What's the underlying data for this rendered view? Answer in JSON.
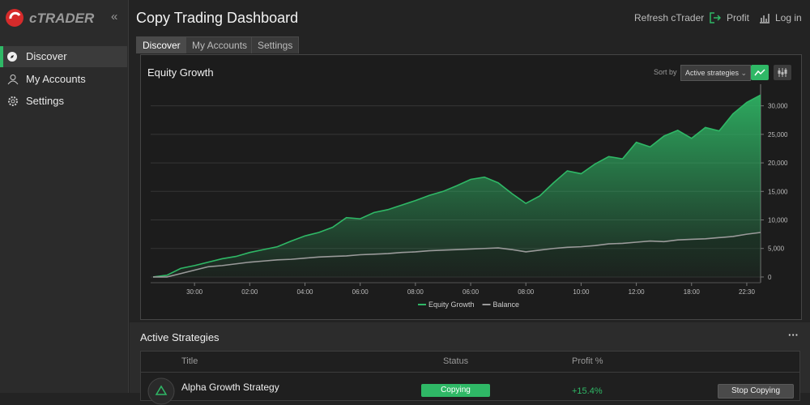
{
  "sidebar": {
    "logo": "cTRADER",
    "nav": [
      "Discover",
      "My Accounts",
      "Settings"
    ]
  },
  "header": {
    "title": "Copy Trading Dashboard",
    "actions": [
      "Refresh cTrader",
      "Profit",
      "Log in"
    ]
  },
  "tabs": [
    "Discover",
    "My Accounts",
    "Settings"
  ],
  "chart_controls": {
    "sort_label": "Sort by",
    "sort_value": "Active strategies"
  },
  "chart_data": {
    "type": "area",
    "title": "Equity Growth",
    "categories": [
      null,
      null,
      null,
      "30:00",
      null,
      null,
      null,
      "02:00",
      null,
      null,
      null,
      "04:00",
      null,
      null,
      null,
      "06:00",
      null,
      null,
      null,
      "08:00",
      null,
      null,
      null,
      "06:00",
      null,
      null,
      null,
      "08:00",
      null,
      null,
      null,
      "10:00",
      null,
      null,
      null,
      "12:00",
      null,
      null,
      null,
      "18:00",
      null,
      null,
      null,
      "22:30",
      null
    ],
    "series": [
      {
        "name": "Equity Growth",
        "color": "#2fb866",
        "values": [
          0,
          300,
          1500,
          2000,
          2600,
          3200,
          3600,
          4300,
          4800,
          5300,
          6300,
          7200,
          7800,
          8700,
          10400,
          10200,
          11300,
          11800,
          12600,
          13400,
          14300,
          15000,
          16000,
          17100,
          17500,
          16500,
          14600,
          12900,
          14200,
          16500,
          18600,
          18100,
          19800,
          21100,
          20700,
          23600,
          22800,
          24700,
          25700,
          24300,
          26200,
          25600,
          28600,
          30600,
          31900
        ]
      },
      {
        "name": "Balance",
        "color": "#9a9a9a",
        "values": [
          0,
          0,
          600,
          1200,
          1800,
          2000,
          2300,
          2600,
          2800,
          3000,
          3100,
          3300,
          3500,
          3600,
          3700,
          3900,
          4000,
          4100,
          4300,
          4400,
          4600,
          4700,
          4800,
          4900,
          5000,
          5100,
          4800,
          4400,
          4700,
          5000,
          5200,
          5300,
          5500,
          5800,
          5900,
          6100,
          6300,
          6200,
          6500,
          6600,
          6700,
          6900,
          7100,
          7500,
          7800
        ]
      }
    ],
    "ylim": [
      -1000,
      33500
    ],
    "yticks": [
      0,
      {
        "value": 5000,
        "label": "5,000"
      },
      {
        "value": 10000,
        "label": "10,000"
      },
      {
        "value": 15000,
        "label": "15,000"
      },
      {
        "value": 20000,
        "label": "20,000"
      },
      {
        "value": 25000,
        "label": "25,000"
      },
      {
        "value": 30000,
        "label": "30,000"
      }
    ],
    "grid": true,
    "legend": "bottom"
  },
  "strategies": {
    "title": "Active Strategies",
    "menu": "···",
    "columns": [
      "Title",
      "Status",
      "Profit %"
    ],
    "rows": [
      [
        "Alpha Growth Strategy",
        "Copying",
        "+15.4%",
        "Stop Copying"
      ]
    ]
  }
}
